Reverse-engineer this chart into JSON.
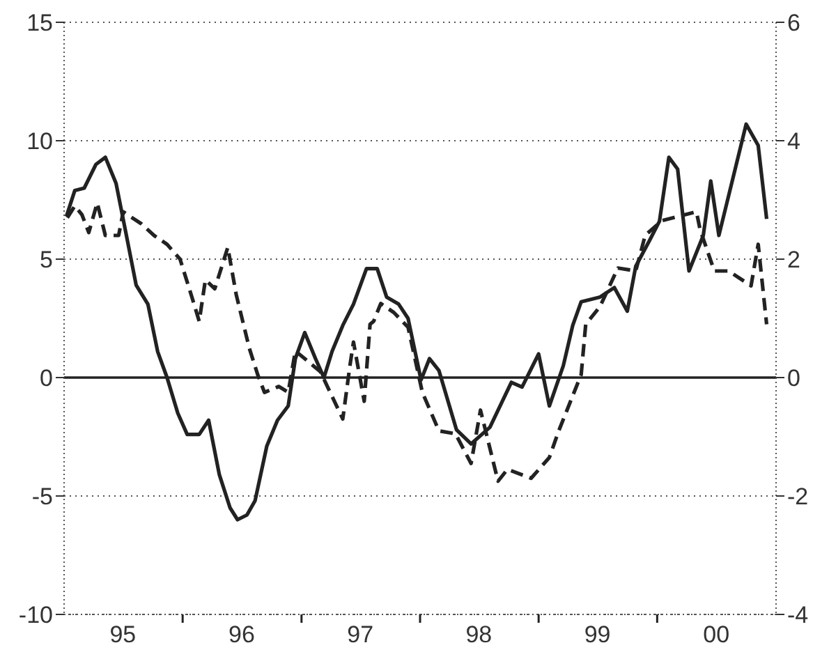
{
  "chart_data": {
    "type": "line",
    "xlim": [
      "1995-01-01",
      "2001-01-01"
    ],
    "xticks": [
      {
        "value": "1995-07-01",
        "label": "95"
      },
      {
        "value": "1996-01-01",
        "label": null
      },
      {
        "value": "1996-07-01",
        "label": "96"
      },
      {
        "value": "1997-01-01",
        "label": null
      },
      {
        "value": "1997-07-01",
        "label": "97"
      },
      {
        "value": "1998-01-01",
        "label": null
      },
      {
        "value": "1998-07-01",
        "label": "98"
      },
      {
        "value": "1999-01-01",
        "label": null
      },
      {
        "value": "1999-07-01",
        "label": "99"
      },
      {
        "value": "2000-01-01",
        "label": null
      },
      {
        "value": "2000-07-01",
        "label": "00"
      }
    ],
    "ylim": [
      -10,
      15
    ],
    "yticks": [
      -10,
      -5,
      0,
      5,
      10,
      15
    ],
    "y2lim": [
      -4,
      6
    ],
    "y2ticks": [
      -4,
      -2,
      0,
      2,
      4,
      6
    ],
    "grid": "y",
    "ref_lines": [
      {
        "axis": "y",
        "value": 0,
        "color": "#222222",
        "line_style": "solid"
      }
    ],
    "series": [
      {
        "color": "#222222",
        "line_style": "solid",
        "x": [
          "1995-01-08",
          "1995-02-03",
          "1995-03-04",
          "1995-04-09",
          "1995-05-08",
          "1995-06-10",
          "1995-07-09",
          "1995-08-11",
          "1995-09-16",
          "1995-10-16",
          "1995-11-14",
          "1995-12-17",
          "1996-01-15",
          "1996-02-21",
          "1996-03-21",
          "1996-04-23",
          "1996-05-26",
          "1996-06-18",
          "1996-07-17",
          "1996-08-11",
          "1996-09-16",
          "1996-10-19",
          "1996-11-21",
          "1996-12-13",
          "1997-01-11",
          "1997-02-13",
          "1997-03-11",
          "1997-04-05",
          "1997-05-08",
          "1997-06-10",
          "1997-07-20",
          "1997-08-22",
          "1997-09-20",
          "1997-10-27",
          "1997-11-25",
          "1998-01-04",
          "1998-01-30",
          "1998-02-28",
          "1998-04-23",
          "1998-06-07",
          "1998-08-04",
          "1998-10-09",
          "1998-11-11",
          "1999-01-01",
          "1999-02-03",
          "1999-03-18",
          "1999-04-16",
          "1999-05-12",
          "1999-07-09",
          "1999-08-22",
          "1999-10-01",
          "1999-10-27",
          "1999-12-09",
          "2000-01-08",
          "2000-02-06",
          "2000-03-04",
          "2000-04-08",
          "2000-05-22",
          "2000-06-14",
          "2000-07-09",
          "2000-10-01",
          "2000-11-07",
          "2000-12-03"
        ],
        "values": [
          6.8,
          7.9,
          8.0,
          9.0,
          9.3,
          8.2,
          6.2,
          3.9,
          3.1,
          1.1,
          0.0,
          -1.5,
          -2.4,
          -2.4,
          -1.8,
          -4.1,
          -5.5,
          -6.0,
          -5.8,
          -5.2,
          -2.9,
          -1.8,
          -1.2,
          0.8,
          1.9,
          0.8,
          0.0,
          1.1,
          2.2,
          3.1,
          4.6,
          4.6,
          3.4,
          3.1,
          2.5,
          -0.1,
          0.8,
          0.3,
          -2.2,
          -2.8,
          -2.1,
          -0.2,
          -0.4,
          1.0,
          -1.2,
          0.5,
          2.2,
          3.2,
          3.4,
          3.8,
          2.8,
          4.7,
          5.8,
          6.6,
          9.3,
          8.8,
          4.5,
          6.0,
          8.3,
          6.0,
          10.7,
          9.8,
          6.7
        ]
      },
      {
        "color": "#222222",
        "line_style": "dashed",
        "axis": "y2",
        "x": [
          "1995-01-11",
          "1995-02-03",
          "1995-02-25",
          "1995-03-18",
          "1995-04-13",
          "1995-05-08",
          "1995-06-18",
          "1995-07-02",
          "1995-08-26",
          "1995-10-05",
          "1995-11-14",
          "1995-12-24",
          "1996-01-30",
          "1996-02-21",
          "1996-03-11",
          "1996-04-09",
          "1996-05-19",
          "1996-06-14",
          "1996-07-24",
          "1996-08-19",
          "1996-09-09",
          "1996-10-23",
          "1996-11-21",
          "1996-12-13",
          "1997-02-28",
          "1997-05-08",
          "1997-05-30",
          "1997-06-10",
          "1997-07-13",
          "1997-07-31",
          "1997-08-11",
          "1997-09-02",
          "1997-10-12",
          "1997-11-25",
          "1998-01-08",
          "1998-02-28",
          "1998-04-20",
          "1998-06-07",
          "1998-07-06",
          "1998-08-29",
          "1998-09-27",
          "1998-12-09",
          "1999-02-03",
          "1999-03-04",
          "1999-05-12",
          "1999-05-26",
          "1999-07-09",
          "1999-09-02",
          "1999-10-27",
          "1999-11-25",
          "2000-01-15",
          "2000-05-01",
          "2000-05-12",
          "2000-06-25",
          "2000-08-08",
          "2000-10-16",
          "2000-11-07",
          "2000-12-03"
        ],
        "values": [
          2.7,
          2.9,
          2.75,
          2.45,
          2.95,
          2.4,
          2.4,
          2.8,
          2.6,
          2.4,
          2.25,
          2.0,
          1.35,
          0.95,
          1.65,
          1.5,
          2.2,
          1.4,
          0.5,
          0.05,
          -0.25,
          -0.15,
          -0.25,
          0.45,
          0.1,
          -0.7,
          0.2,
          0.6,
          -0.4,
          0.9,
          0.95,
          1.25,
          1.1,
          0.85,
          -0.25,
          -0.9,
          -0.95,
          -1.45,
          -0.55,
          -1.75,
          -1.55,
          -1.7,
          -1.35,
          -0.9,
          0.05,
          0.9,
          1.2,
          1.85,
          1.8,
          2.4,
          2.65,
          2.8,
          2.5,
          1.8,
          1.8,
          1.55,
          2.25,
          0.9
        ]
      }
    ]
  }
}
